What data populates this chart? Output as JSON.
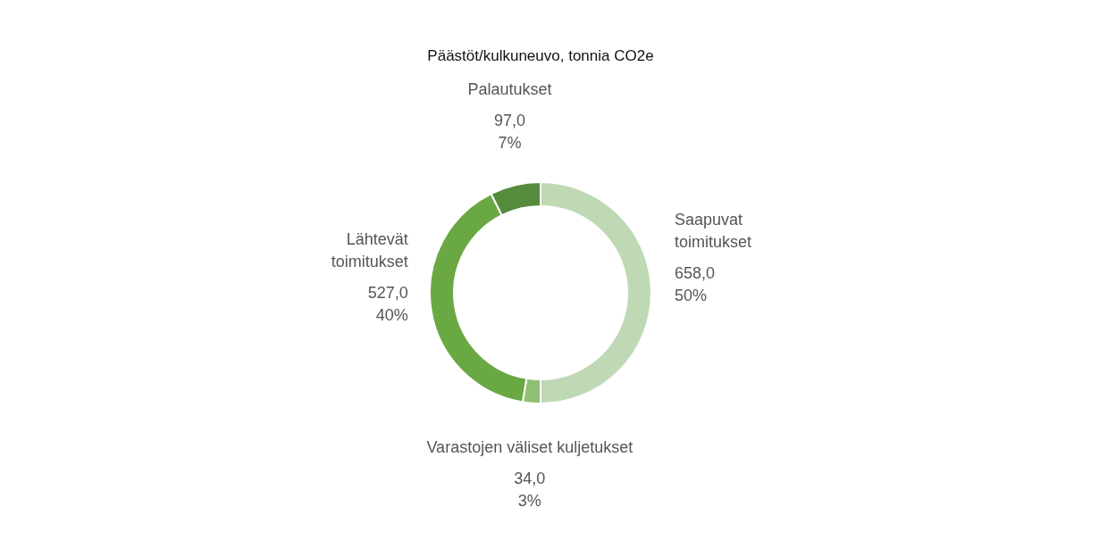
{
  "chart_data": {
    "type": "donut",
    "title": "Päästöt/kulkuneuvo, tonnia CO2e",
    "categories": [
      "Saapuvat toimitukset",
      "Varastojen väliset kuljetukset",
      "Lähtevät toimitukset",
      "Palautukset"
    ],
    "values": [
      658.0,
      34.0,
      527.0,
      97.0
    ],
    "colors": [
      "#bfd9b5",
      "#8fbf72",
      "#6aa843",
      "#548b3c"
    ],
    "value_labels": [
      "658,0\n50%",
      "34,0\n3%",
      "527,0\n40%",
      "97,0\n7%"
    ]
  }
}
